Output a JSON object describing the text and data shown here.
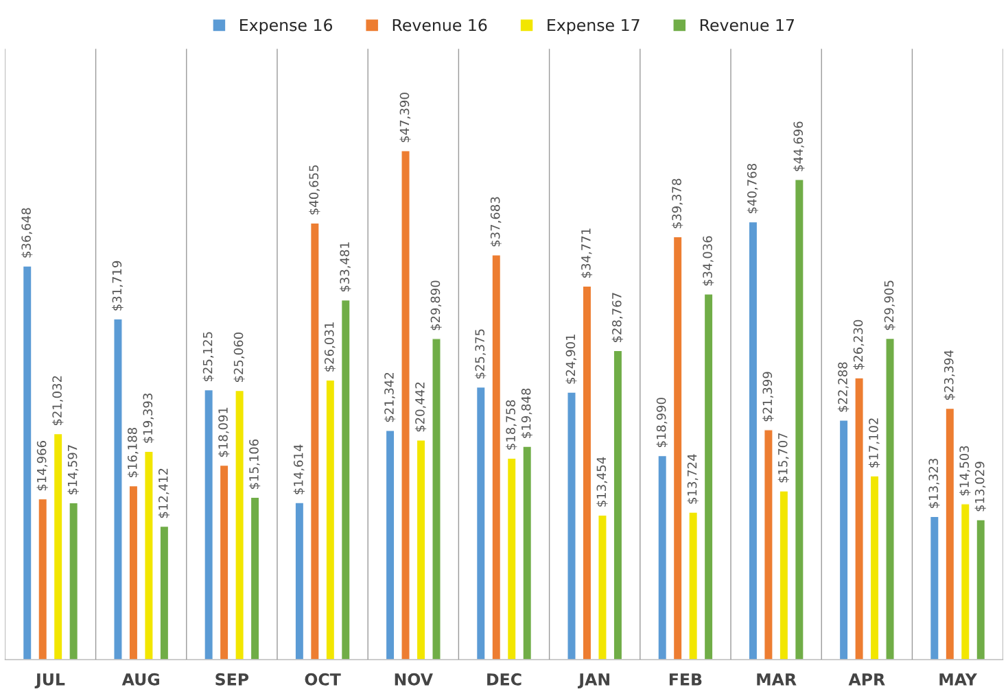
{
  "chart_data": {
    "type": "bar",
    "categories": [
      "JUL",
      "AUG",
      "SEP",
      "OCT",
      "NOV",
      "DEC",
      "JAN",
      "FEB",
      "MAR",
      "APR",
      "MAY"
    ],
    "series": [
      {
        "name": "Expense 16",
        "color": "#5b9bd5",
        "values": [
          36648,
          31719,
          25125,
          14614,
          21342,
          25375,
          24901,
          18990,
          40768,
          22288,
          13323
        ],
        "value_labels": [
          "$36,648",
          "$31,719",
          "$25,125",
          "$14,614",
          "$21,342",
          "$25,375",
          "$24,901",
          "$18,990",
          "$40,768",
          "$22,288",
          "$13,323"
        ]
      },
      {
        "name": "Revenue 16",
        "color": "#ed7d31",
        "values": [
          14966,
          16188,
          18091,
          40655,
          47390,
          37683,
          34771,
          39378,
          21399,
          26230,
          23394
        ],
        "value_labels": [
          "$14,966",
          "$16,188",
          "$18,091",
          "$40,655",
          "$47,390",
          "$37,683",
          "$34,771",
          "$39,378",
          "$21,399",
          "$26,230",
          "$23,394"
        ]
      },
      {
        "name": "Expense 17",
        "color": "#f2e600",
        "values": [
          21032,
          19393,
          25060,
          26031,
          20442,
          18758,
          13454,
          13724,
          15707,
          17102,
          14503
        ],
        "value_labels": [
          "$21,032",
          "$19,393",
          "$25,060",
          "$26,031",
          "$20,442",
          "$18,758",
          "$13,454",
          "$13,724",
          "$15,707",
          "$17,102",
          "$14,503"
        ]
      },
      {
        "name": "Revenue 17",
        "color": "#70ad47",
        "values": [
          14597,
          12412,
          15106,
          33481,
          29890,
          19848,
          28767,
          34036,
          44696,
          29905,
          13029
        ],
        "value_labels": [
          "$14,597",
          "$12,412",
          "$15,106",
          "$33,481",
          "$29,890",
          "$19,848",
          "$28,767",
          "$34,036",
          "$44,696",
          "$29,905",
          "$13,029"
        ]
      }
    ],
    "legend": "top",
    "grid": "x"
  }
}
